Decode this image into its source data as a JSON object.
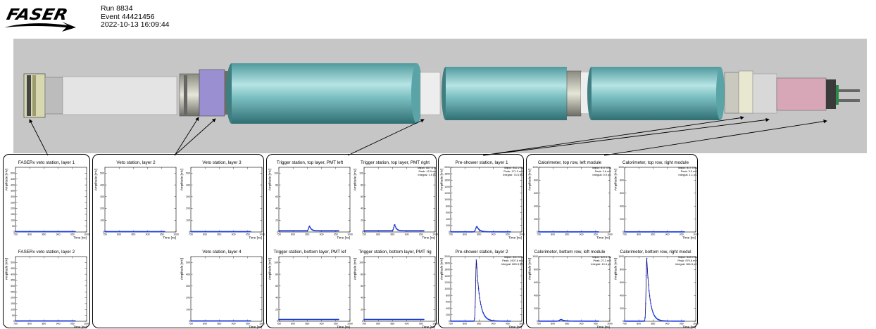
{
  "header": {
    "logo_text": "FASER",
    "run": "Run 8834",
    "event": "Event 44421456",
    "datetime": "2022-10-13 16:09:44"
  },
  "colors": {
    "curve": "#00007a",
    "marker": "#1c3ce0",
    "frame": "#000000",
    "detector_bg": "#c6c6c6",
    "magnet": "#6fb0b4"
  },
  "groups": [
    {
      "panels": [
        {
          "title": "FASERν veto station, layer 1",
          "ylabel": "Amplitude [mV]",
          "xlabel": "Time [ns]",
          "ylim": [
            0,
            550
          ],
          "yticks": [
            0,
            50,
            100,
            150,
            200,
            250,
            300,
            350,
            400,
            450,
            500
          ],
          "xticks": [
            "750",
            "800",
            "850",
            "900",
            "950",
            "1000"
          ],
          "stats": null,
          "signal": {
            "type": "flat",
            "level": 3
          }
        },
        {
          "title": "FASERν veto station, layer 2",
          "ylabel": "Amplitude [mV]",
          "xlabel": "Time [ns]",
          "ylim": [
            0,
            550
          ],
          "yticks": [
            0,
            50,
            100,
            150,
            200,
            250,
            300,
            350,
            400,
            450,
            500
          ],
          "xticks": [
            "750",
            "800",
            "850",
            "900",
            "950",
            "1000"
          ],
          "stats": null,
          "signal": {
            "type": "flat",
            "level": 3
          }
        }
      ]
    },
    {
      "panels": [
        {
          "title": "Veto station, layer 2",
          "ylabel": "Amplitude [mV]",
          "xlabel": "Time [ns]",
          "ylim": [
            0,
            550
          ],
          "yticks": [
            0,
            100,
            200,
            300,
            400,
            500
          ],
          "xticks": [
            "750",
            "800",
            "850",
            "900",
            "950",
            "1000"
          ],
          "stats": null,
          "signal": {
            "type": "flat",
            "level": 3
          }
        },
        {
          "title": "Veto station, layer 3",
          "ylabel": "Amplitude [mV]",
          "xlabel": "Time [ns]",
          "ylim": [
            0,
            550
          ],
          "yticks": [
            0,
            100,
            200,
            300,
            400,
            500
          ],
          "xticks": [
            "750",
            "800",
            "850",
            "900",
            "950",
            "1000"
          ],
          "stats": null,
          "signal": {
            "type": "flat",
            "level": 3
          }
        },
        null,
        {
          "title": "Veto station, layer 4",
          "ylabel": "Amplitude [mV]",
          "xlabel": "Time [ns]",
          "ylim": [
            0,
            550
          ],
          "yticks": [
            0,
            100,
            200,
            300,
            400,
            500
          ],
          "xticks": [
            "750",
            "800",
            "850",
            "900",
            "950",
            "1000"
          ],
          "stats": null,
          "signal": {
            "type": "flat",
            "level": 3
          }
        }
      ]
    },
    {
      "panels": [
        {
          "title": "Trigger station, top layer, PMT left",
          "ylabel": "Amplitude [mV]",
          "xlabel": "Time [ns]",
          "ylim": [
            0,
            110
          ],
          "yticks": [
            0,
            20,
            40,
            60,
            80,
            100
          ],
          "xticks": [
            "750",
            "800",
            "850",
            "900",
            "950",
            "1000"
          ],
          "stats": null,
          "signal": {
            "type": "pulse",
            "level": 2,
            "peak": 10,
            "t0": 858,
            "rise": 3,
            "decay": 6
          }
        },
        {
          "title": "Trigger station, top layer, PMT right",
          "ylabel": "Amplitude [mV]",
          "xlabel": "Time [ns]",
          "ylim": [
            0,
            110
          ],
          "yticks": [
            0,
            20,
            40,
            60,
            80,
            100
          ],
          "xticks": [
            "750",
            "800",
            "850",
            "900",
            "950",
            "1000"
          ],
          "stats": [
            "Mean: 857.6 ns",
            "Peak: 12.9 mV",
            "Integral: 1.9 pC"
          ],
          "signal": {
            "type": "pulse",
            "level": 2,
            "peak": 12.9,
            "t0": 857.6,
            "rise": 3,
            "decay": 6
          }
        },
        {
          "title": "Trigger station, bottom layer, PMT lef",
          "ylabel": "Amplitude [mV]",
          "xlabel": "Time [ns]",
          "ylim": [
            0,
            110
          ],
          "yticks": [
            0,
            20,
            40,
            60,
            80,
            100
          ],
          "xticks": [
            "750",
            "800",
            "850",
            "900",
            "950",
            "1000"
          ],
          "stats": null,
          "signal": {
            "type": "flat",
            "level": 3
          }
        },
        {
          "title": "Trigger station, bottom layer, PMT rig",
          "ylabel": "Amplitude [mV]",
          "xlabel": "Time [ns]",
          "ylim": [
            0,
            110
          ],
          "yticks": [
            0,
            20,
            40,
            60,
            80,
            100
          ],
          "xticks": [
            "750",
            "800",
            "850",
            "900",
            "950",
            "1000"
          ],
          "stats": null,
          "signal": {
            "type": "flat",
            "level": 3
          }
        }
      ]
    },
    {
      "panels": [
        {
          "title": "Pre-shower station, layer 1",
          "ylabel": "Amplitude [mV]",
          "xlabel": "Time [ns]",
          "ylim": [
            0,
            2000
          ],
          "yticks": [
            0,
            200,
            400,
            600,
            800,
            1000,
            1200,
            1400,
            1600,
            1800,
            2000
          ],
          "xticks": [
            "750",
            "800",
            "850",
            "900",
            "950",
            "1000"
          ],
          "stats": [
            "Mean: 842.2 ns",
            "Peak: 171.3 mV",
            "Integral: 74.5 pC"
          ],
          "signal": {
            "type": "pulse",
            "level": 4,
            "peak": 171.3,
            "t0": 842.2,
            "rise": 4,
            "decay": 9
          }
        },
        {
          "title": "Pre-shower station, layer 2",
          "ylabel": "Amplitude [mV]",
          "xlabel": "Time [ns]",
          "ylim": [
            0,
            2000
          ],
          "yticks": [
            0,
            200,
            400,
            600,
            800,
            1000,
            1200,
            1400,
            1600,
            1800,
            2000
          ],
          "xticks": [
            "750",
            "800",
            "850",
            "900",
            "950",
            "1000"
          ],
          "stats": [
            "Mean: 840.3 ns",
            "Peak: 1907.6 mV",
            "Integral: 653.3 pC"
          ],
          "signal": {
            "type": "pulse",
            "level": 4,
            "peak": 1907.6,
            "t0": 840.3,
            "rise": 2.5,
            "decay": 12
          }
        }
      ]
    },
    {
      "panels": [
        {
          "title": "Calorimeter, top row, left module",
          "ylabel": "Amplitude [mV]",
          "xlabel": "Time [ns]",
          "ylim": [
            0,
            1000
          ],
          "yticks": [
            0,
            200,
            400,
            600,
            800,
            1000
          ],
          "xticks": [
            "750",
            "800",
            "850",
            "900",
            "950",
            "1000"
          ],
          "stats": [
            "Mean: 817.3 ns",
            "Peak: 2.6 mV",
            "Integral: 0.9 pC"
          ],
          "signal": {
            "type": "flat",
            "level": 2
          }
        },
        {
          "title": "Calorimeter, top row, right module",
          "ylabel": "Amplitude [mV]",
          "xlabel": "Time [ns]",
          "ylim": [
            0,
            1000
          ],
          "yticks": [
            0,
            200,
            400,
            600,
            800,
            1000
          ],
          "xticks": [
            "750",
            "800",
            "850",
            "900",
            "950",
            "1000"
          ],
          "stats": [
            "Mean: 817.3 ns",
            "Peak: 3.0 mV",
            "Integral: 1.1 pC"
          ],
          "signal": {
            "type": "flat",
            "level": 2
          }
        },
        {
          "title": "Calorimeter, bottom row, left module",
          "ylabel": "Amplitude [mV]",
          "xlabel": "Time [ns]",
          "ylim": [
            0,
            1000
          ],
          "yticks": [
            0,
            200,
            400,
            600,
            800,
            1000
          ],
          "xticks": [
            "750",
            "800",
            "850",
            "900",
            "950",
            "1000"
          ],
          "stats": [
            "Mean: 829.1 ns",
            "Peak: 27.2 mV",
            "Integral: 10.4 pC"
          ],
          "signal": {
            "type": "pulse",
            "level": 2,
            "peak": 27.2,
            "t0": 829.1,
            "rise": 5,
            "decay": 10
          }
        },
        {
          "title": "Calorimeter, bottom row, right modul",
          "ylabel": "Amplitude [mV]",
          "xlabel": "Time [ns]",
          "ylim": [
            0,
            1000
          ],
          "yticks": [
            0,
            200,
            400,
            600,
            800,
            1000
          ],
          "xticks": [
            "750",
            "800",
            "850",
            "900",
            "950",
            "1000"
          ],
          "stats": [
            "Mean: 828.0 ns",
            "Peak: 970.6 mV",
            "Integral: 364.3 pC"
          ],
          "signal": {
            "type": "pulse",
            "level": 2,
            "peak": 970.6,
            "t0": 828.0,
            "rise": 2.5,
            "decay": 11
          }
        }
      ]
    }
  ]
}
